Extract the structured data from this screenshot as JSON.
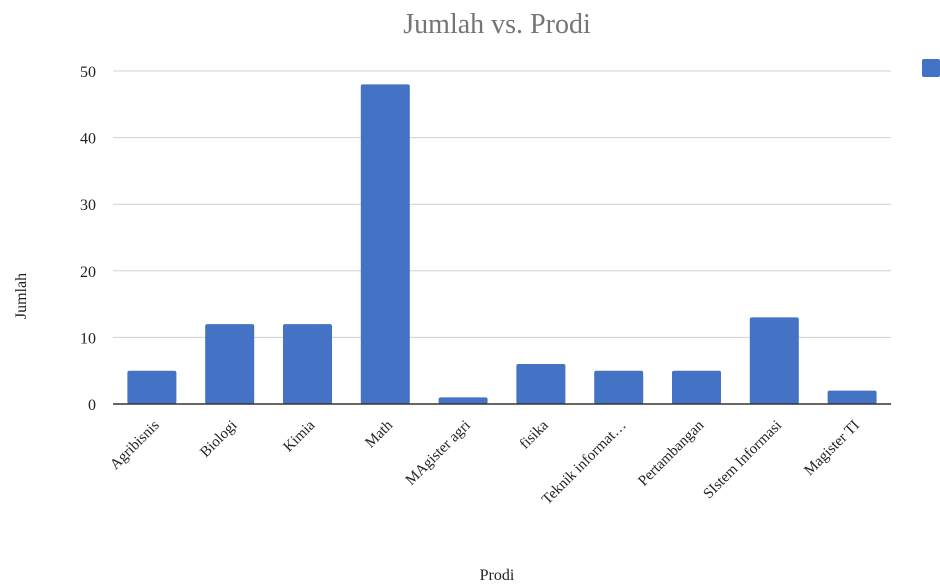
{
  "chart_data": {
    "type": "bar",
    "title": "Jumlah vs. Prodi",
    "xlabel": "Prodi",
    "ylabel": "Jumlah",
    "categories": [
      "Agribisnis",
      "Biologi",
      "Kimia",
      "Math",
      "MAgister agri",
      "fisika",
      "Teknik informat…",
      "Pertambangan",
      "SIstem Informasi",
      "Magister TI"
    ],
    "series": [
      {
        "values": [
          5,
          12,
          12,
          48,
          1,
          6,
          5,
          5,
          13,
          2
        ]
      }
    ],
    "ylim": [
      0,
      50
    ],
    "yticks": [
      0,
      10,
      20,
      30,
      40,
      50
    ],
    "grid": true,
    "legend": "top-right",
    "colors": {
      "bar": "#4472c4",
      "title": "#757575"
    }
  }
}
